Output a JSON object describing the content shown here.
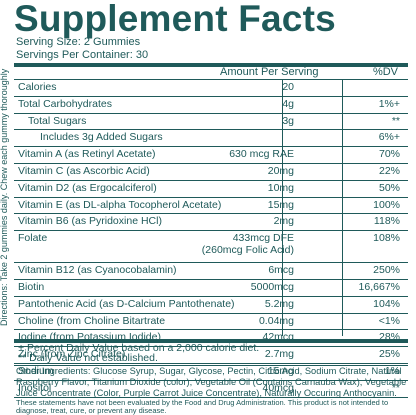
{
  "side_text": {
    "line1": "Directions: Take 2 gummies daily. Chew each gummy thoroughly"
  },
  "title": "Supplement Facts",
  "serving_size": "Serving Size: 2 Gummies",
  "servings_per_container": "Servings Per Container: 30",
  "header": {
    "amount": "Amount Per Serving",
    "dv": "%DV"
  },
  "rows": [
    {
      "label": "Calories",
      "amount": "20",
      "dv": ""
    },
    {
      "label": "Total Carbohydrates",
      "amount": "4g",
      "dv": "1%+"
    },
    {
      "label": "Total Sugars",
      "amount": "3g",
      "dv": "**"
    },
    {
      "label": "Includes 3g Added Sugars",
      "amount": "",
      "dv": "6%+"
    },
    {
      "label": "Vitamin A (as Retinyl Acetate)",
      "amount": "630 mcg RAE",
      "dv": "70%"
    },
    {
      "label": "Vitamin C (as Ascorbic Acid)",
      "amount": "20mg",
      "dv": "22%"
    },
    {
      "label": "Vitamin D2 (as Ergocalciferol)",
      "amount": "10mg",
      "dv": "50%"
    },
    {
      "label": "Vitamin E (as DL-alpha Tocopherol Acetate)",
      "amount": "15mg",
      "dv": "100%"
    },
    {
      "label": "Vitamin B6 (as Pyridoxine HCl)",
      "amount": "2mg",
      "dv": "118%"
    },
    {
      "label": "Folate",
      "amount": "433mcg DFE",
      "amount2": "(260mcg Folic Acid)",
      "dv": "108%"
    },
    {
      "label": "Vitamin B12 (as Cyanocobalamin)",
      "amount": "6mcg",
      "dv": "250%"
    },
    {
      "label": "Biotin",
      "amount": "5000mcg",
      "dv": "16,667%"
    },
    {
      "label": "Pantothenic Acid (as D-Calcium Pantothenate)",
      "amount": "5.2mg",
      "dv": "104%"
    },
    {
      "label": "Choline (from Choline Bitartrate",
      "amount": "0.04mg",
      "dv": "<1%"
    },
    {
      "label": "Iodine (from Potassium Iodide)",
      "amount": "42mcg",
      "dv": "28%"
    },
    {
      "label": "Zinc (from Zinc Citrate)",
      "amount": "2.7mg",
      "dv": "25%"
    },
    {
      "label": "Sodium",
      "amount": "15mg",
      "dv": "1%"
    },
    {
      "label": "Inositol",
      "amount": "40mcg",
      "dv": "**"
    }
  ],
  "footnotes": {
    "dv": "+ Percent Daily Value based on a 2,000 calorie diet.",
    "not_established": "** Daily Value not established."
  },
  "ingredients": "Other Ingredients: Glucose Syrup, Sugar, Glycose, Pectin, Citric Acid, Sodium Citrate, Natural Raspberry Flavor, Titanium Dioxide (color), Vegetable Oil (Contains Carnauba Wax), Vegetable Juice Concentrate (Color, Purple Carrot Juice Concentrate), Naturally Occuring Anthocyanin.",
  "disclaimer": "These statements have not been evaluated by the Food and Drug Administration. This product is not intended to diagnose, treat, cure, or prevent any disease."
}
